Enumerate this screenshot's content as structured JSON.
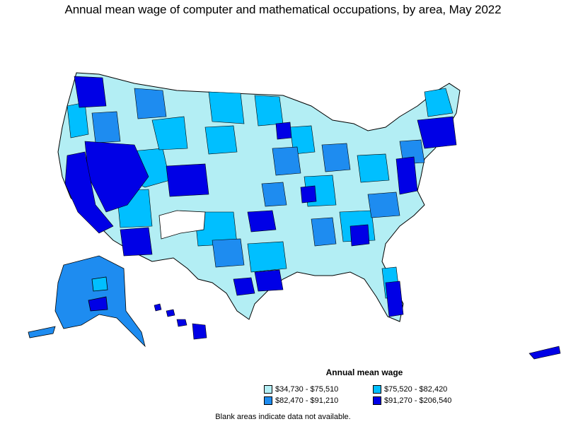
{
  "title": "Annual mean wage of computer and mathematical occupations, by area, May 2022",
  "legend": {
    "title": "Annual mean wage",
    "items": [
      {
        "label": "$34,730 - $75,510",
        "color": "#b3eef4"
      },
      {
        "label": "$75,520 - $82,420",
        "color": "#00bfff"
      },
      {
        "label": "$82,470 - $91,210",
        "color": "#1e8cf0"
      },
      {
        "label": "$91,270 - $206,540",
        "color": "#0000e6"
      }
    ]
  },
  "note": "Blank areas indicate data not available.",
  "colors": {
    "low": "#b3eef4",
    "mid_low": "#00bfff",
    "mid_high": "#1e8cf0",
    "high": "#0000e6",
    "border": "#000000"
  }
}
